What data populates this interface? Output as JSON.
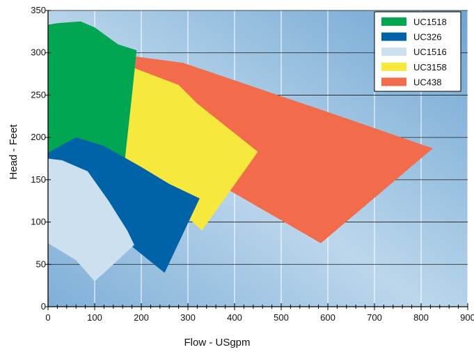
{
  "chart_data": {
    "type": "area",
    "title": "",
    "xlabel": "Flow  - USgpm",
    "ylabel": "Head  - Feet",
    "xlim": [
      0,
      900
    ],
    "ylim": [
      0,
      350
    ],
    "x_ticks": [
      0,
      100,
      200,
      300,
      400,
      500,
      600,
      700,
      800,
      900
    ],
    "y_ticks": [
      0,
      50,
      100,
      150,
      200,
      250,
      300,
      350
    ],
    "grid": true,
    "legend_position": "top-right",
    "background": "blue gradient",
    "series": [
      {
        "name": "UC438",
        "color": "#F26B4A",
        "points": [
          [
            60,
            305
          ],
          [
            290,
            288
          ],
          [
            600,
            230
          ],
          [
            825,
            187
          ],
          [
            585,
            75
          ],
          [
            240,
            185
          ],
          [
            60,
            210
          ]
        ]
      },
      {
        "name": "UC3158",
        "color": "#F7E83E",
        "points": [
          [
            0,
            310
          ],
          [
            180,
            283
          ],
          [
            280,
            262
          ],
          [
            320,
            240
          ],
          [
            450,
            183
          ],
          [
            330,
            90
          ],
          [
            250,
            130
          ],
          [
            160,
            175
          ],
          [
            0,
            210
          ]
        ]
      },
      {
        "name": "UC1518",
        "color": "#00A651",
        "points": [
          [
            0,
            333
          ],
          [
            20,
            335
          ],
          [
            70,
            337
          ],
          [
            100,
            330
          ],
          [
            150,
            310
          ],
          [
            190,
            303
          ],
          [
            180,
            250
          ],
          [
            165,
            175
          ],
          [
            0,
            180
          ]
        ]
      },
      {
        "name": "UC326",
        "color": "#0063A7",
        "points": [
          [
            0,
            182
          ],
          [
            60,
            200
          ],
          [
            120,
            190
          ],
          [
            200,
            165
          ],
          [
            260,
            145
          ],
          [
            325,
            128
          ],
          [
            250,
            40
          ],
          [
            160,
            80
          ],
          [
            80,
            110
          ],
          [
            0,
            130
          ]
        ]
      },
      {
        "name": "UC1516",
        "color": "#CCE0EF",
        "points": [
          [
            0,
            175
          ],
          [
            30,
            173
          ],
          [
            85,
            160
          ],
          [
            130,
            125
          ],
          [
            170,
            90
          ],
          [
            185,
            73
          ],
          [
            140,
            50
          ],
          [
            100,
            30
          ],
          [
            60,
            55
          ],
          [
            0,
            75
          ]
        ]
      }
    ],
    "legend": [
      "UC1518",
      "UC326",
      "UC1516",
      "UC3158",
      "UC438"
    ]
  }
}
